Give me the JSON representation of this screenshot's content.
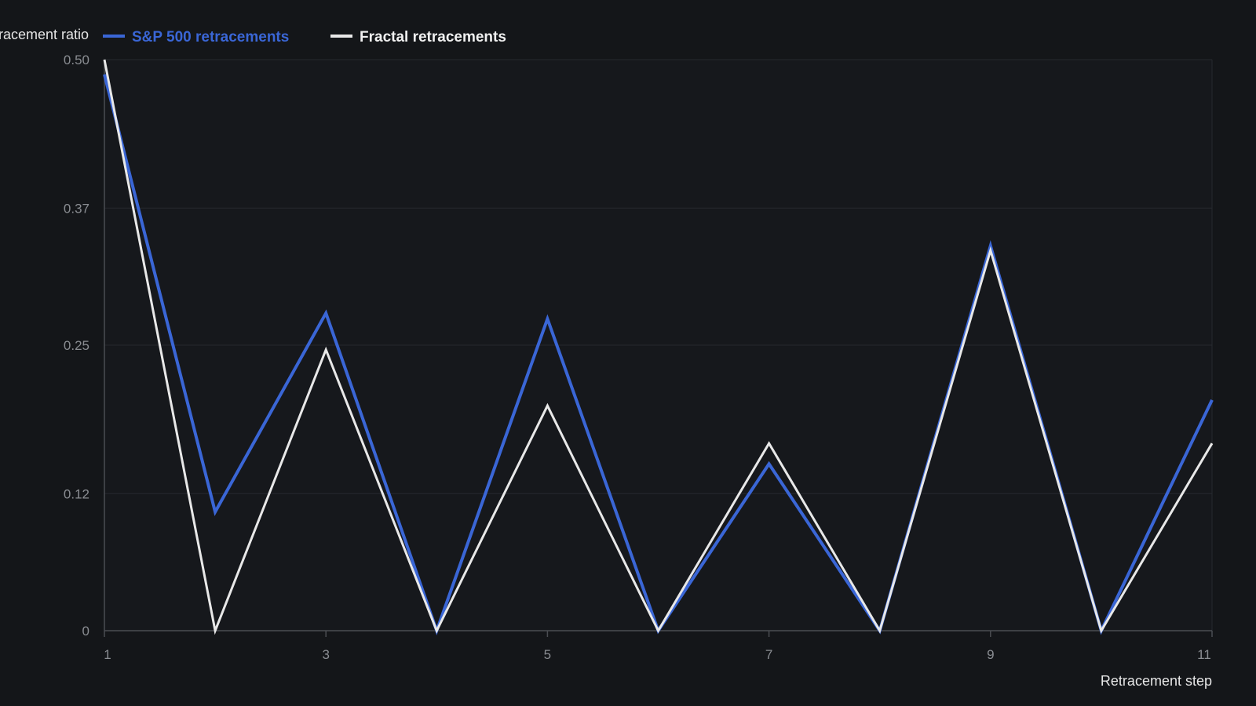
{
  "chart_data": {
    "type": "line",
    "title": "",
    "xlabel": "Retracement step",
    "ylabel": "Retracement ratio",
    "x": [
      1,
      2,
      3,
      4,
      5,
      6,
      7,
      8,
      9,
      10,
      11
    ],
    "xticks": [
      1,
      3,
      5,
      7,
      9,
      11
    ],
    "yticks": [
      0,
      0.12,
      0.25,
      0.37,
      0.5
    ],
    "ytick_labels": [
      "0",
      "0.12",
      "0.25",
      "0.37",
      "0.50"
    ],
    "xlim": [
      1,
      11
    ],
    "ylim": [
      0,
      0.5
    ],
    "grid": true,
    "legend_position": "top-left",
    "series": [
      {
        "name": "S&P 500 retracements",
        "color": "#3a66d6",
        "values": [
          0.487,
          0.104,
          0.278,
          0.0,
          0.273,
          0.0,
          0.146,
          0.0,
          0.337,
          0.0,
          0.202
        ]
      },
      {
        "name": "Fractal retracements",
        "color": "#e8e8e8",
        "values": [
          0.5,
          0.0,
          0.246,
          0.0,
          0.197,
          0.0,
          0.164,
          0.0,
          0.333,
          0.0,
          0.164
        ]
      }
    ]
  },
  "colors": {
    "background": "#141619",
    "plot_background": "#16181c",
    "grid": "#26292e",
    "axis": "#4a4d52",
    "tick_text": "#8a8d92"
  }
}
